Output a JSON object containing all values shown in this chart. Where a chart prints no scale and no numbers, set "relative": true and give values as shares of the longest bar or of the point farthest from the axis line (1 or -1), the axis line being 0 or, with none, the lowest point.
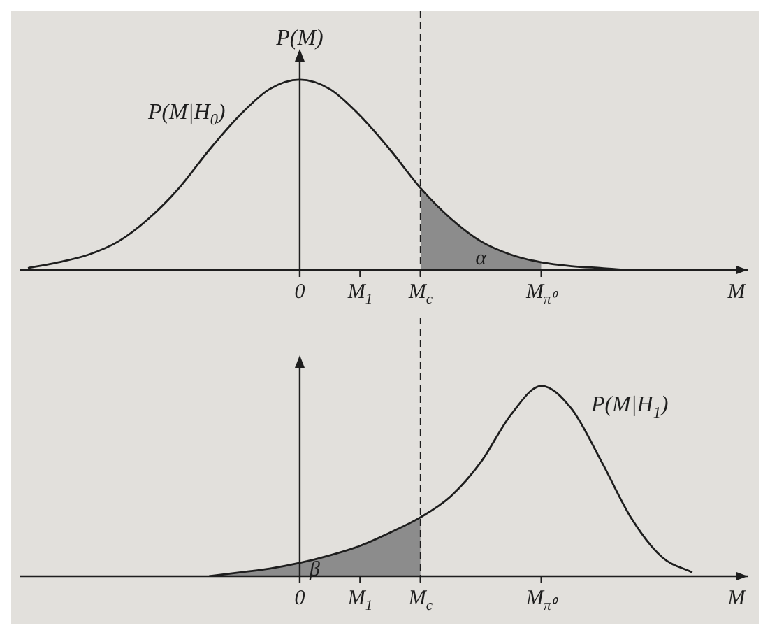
{
  "chart_data": [
    {
      "type": "line",
      "relative": true,
      "ylabel": "P(M)",
      "xlabel": "M",
      "categories": [
        null,
        null,
        null,
        null,
        null,
        null,
        null,
        null,
        null,
        "0",
        null,
        "M$_{1}$",
        null,
        "M$_{c}$",
        null,
        null,
        null,
        "M$_{π⁰}$",
        null,
        null,
        null,
        null,
        null,
        null
      ],
      "series": [
        {
          "name": "P(M|H$_{0}$)",
          "type": "line",
          "color": "#1e1e1e",
          "values": [
            0.01,
            0.04,
            0.08,
            0.15,
            0.27,
            0.43,
            0.63,
            0.81,
            0.95,
            1,
            0.95,
            0.81,
            0.63,
            0.43,
            0.27,
            0.15,
            0.08,
            0.04,
            0.02,
            0.01,
            0,
            0,
            0,
            0
          ]
        },
        {
          "type": "area",
          "color": "#8c8c8c",
          "values": [
            null,
            null,
            null,
            null,
            null,
            null,
            null,
            null,
            null,
            null,
            null,
            null,
            null,
            0.43,
            0.27,
            0.15,
            0.08,
            0.04,
            null,
            null,
            null,
            null,
            null,
            null
          ]
        }
      ],
      "ref_lines": [
        {
          "axis": "x",
          "value": "M$_{c}$",
          "line_style": "dashed"
        }
      ],
      "annotations": [
        "α"
      ]
    },
    {
      "type": "line",
      "relative": true,
      "xlabel": "M",
      "categories": [
        null,
        null,
        null,
        null,
        null,
        null,
        null,
        null,
        null,
        "0",
        null,
        "M$_{1}$",
        null,
        "M$_{c}$",
        null,
        null,
        null,
        "M$_{π⁰}$",
        null,
        null,
        null,
        null,
        null,
        null
      ],
      "series": [
        {
          "name": "P(M|H$_{1}$)",
          "type": "line",
          "color": "#1e1e1e",
          "values": [
            null,
            null,
            null,
            null,
            null,
            null,
            0,
            0.02,
            0.04,
            0.07,
            0.11,
            0.16,
            0.23,
            0.31,
            0.42,
            0.6,
            0.85,
            1,
            0.88,
            0.6,
            0.3,
            0.1,
            0.02,
            null
          ]
        },
        {
          "type": "area",
          "color": "#8c8c8c",
          "values": [
            null,
            null,
            null,
            null,
            null,
            null,
            0,
            0.02,
            0.04,
            0.07,
            0.11,
            0.16,
            0.23,
            0.31,
            null,
            null,
            null,
            null,
            null,
            null,
            null,
            null,
            null,
            null
          ]
        }
      ],
      "ref_lines": [
        {
          "axis": "x",
          "value": "M$_{c}$",
          "line_style": "dashed"
        }
      ],
      "annotations": [
        "β"
      ]
    }
  ]
}
